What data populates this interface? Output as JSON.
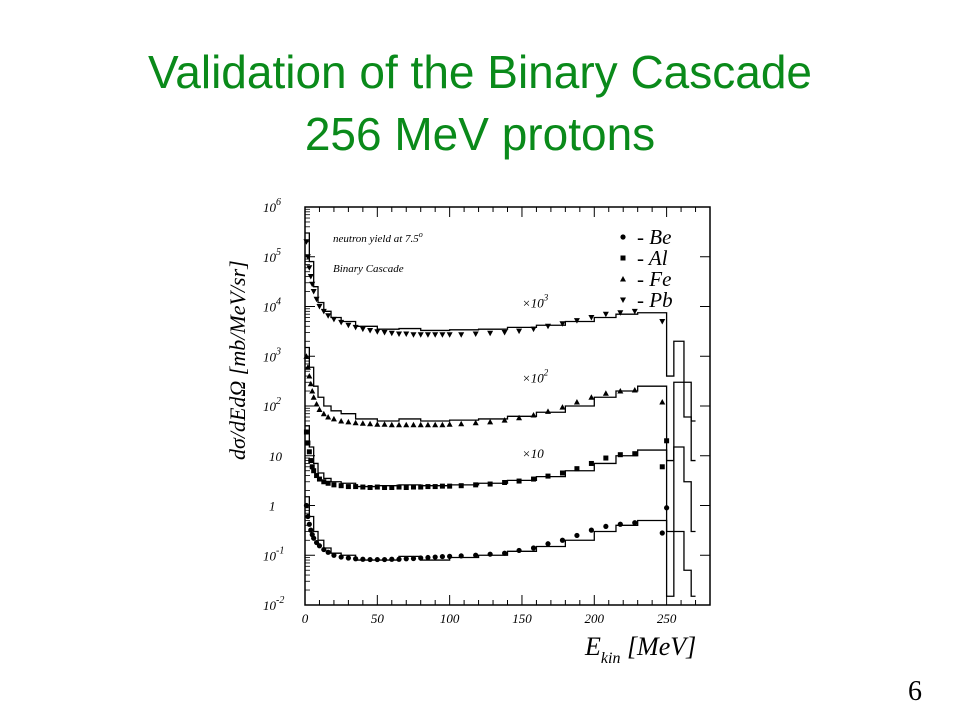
{
  "slide": {
    "title_line_1": "Validation of the Binary Cascade",
    "title_line_2": "256 MeV protons",
    "page_number": "6",
    "title_color": "#0a8a1a"
  },
  "chart_data": {
    "type": "scatter",
    "log_y": true,
    "xlim": [
      0,
      280
    ],
    "ylim": [
      0.01,
      1000000
    ],
    "xlabel": "E",
    "xlabel_sub": "kin",
    "xlabel_unit": "[MeV]",
    "ylabel": "dσ/dEdΩ [mb/MeV/sr]",
    "x_ticks": [
      0,
      50,
      100,
      150,
      200,
      250
    ],
    "y_ticks": [
      {
        "value": 0.01,
        "base": "10",
        "exp": "-2"
      },
      {
        "value": 0.1,
        "base": "10",
        "exp": "-1"
      },
      {
        "value": 1,
        "base": "1",
        "exp": ""
      },
      {
        "value": 10,
        "base": "10",
        "exp": ""
      },
      {
        "value": 100,
        "base": "10",
        "exp": "2"
      },
      {
        "value": 1000,
        "base": "10",
        "exp": "3"
      },
      {
        "value": 10000,
        "base": "10",
        "exp": "4"
      },
      {
        "value": 100000,
        "base": "10",
        "exp": "5"
      },
      {
        "value": 1000000,
        "base": "10",
        "exp": "6"
      }
    ],
    "annotations": {
      "line1_text": "neutron yield at 7.5",
      "line1_sup": "o",
      "line2": "Binary Cascade"
    },
    "legend_position": "top-right",
    "series": [
      {
        "name": "Be",
        "label": "- Be",
        "marker": "circle",
        "scale_label": "",
        "scale_exp": "",
        "points": [
          [
            1,
            1.0
          ],
          [
            2,
            0.6
          ],
          [
            3,
            0.42
          ],
          [
            4,
            0.32
          ],
          [
            5,
            0.26
          ],
          [
            6,
            0.22
          ],
          [
            8,
            0.18
          ],
          [
            10,
            0.155
          ],
          [
            13,
            0.13
          ],
          [
            16,
            0.115
          ],
          [
            20,
            0.1
          ],
          [
            25,
            0.092
          ],
          [
            30,
            0.088
          ],
          [
            35,
            0.085
          ],
          [
            40,
            0.083
          ],
          [
            45,
            0.082
          ],
          [
            50,
            0.082
          ],
          [
            55,
            0.082
          ],
          [
            60,
            0.083
          ],
          [
            65,
            0.083
          ],
          [
            70,
            0.085
          ],
          [
            75,
            0.086
          ],
          [
            80,
            0.088
          ],
          [
            85,
            0.09
          ],
          [
            90,
            0.092
          ],
          [
            95,
            0.094
          ],
          [
            100,
            0.095
          ],
          [
            108,
            0.097
          ],
          [
            118,
            0.1
          ],
          [
            128,
            0.105
          ],
          [
            138,
            0.11
          ],
          [
            148,
            0.125
          ],
          [
            158,
            0.14
          ],
          [
            168,
            0.17
          ],
          [
            178,
            0.2
          ],
          [
            188,
            0.25
          ],
          [
            198,
            0.32
          ],
          [
            208,
            0.38
          ],
          [
            218,
            0.42
          ],
          [
            228,
            0.45
          ],
          [
            247,
            0.28
          ],
          [
            250,
            0.9
          ]
        ],
        "histogram": [
          [
            0,
            1.5
          ],
          [
            3,
            0.6
          ],
          [
            6,
            0.3
          ],
          [
            9,
            0.2
          ],
          [
            13,
            0.14
          ],
          [
            18,
            0.11
          ],
          [
            25,
            0.1
          ],
          [
            35,
            0.08
          ],
          [
            50,
            0.08
          ],
          [
            65,
            0.095
          ],
          [
            80,
            0.08
          ],
          [
            100,
            0.09
          ],
          [
            120,
            0.1
          ],
          [
            140,
            0.12
          ],
          [
            160,
            0.15
          ],
          [
            180,
            0.2
          ],
          [
            200,
            0.3
          ],
          [
            215,
            0.4
          ],
          [
            230,
            0.5
          ],
          [
            245,
            0.5
          ],
          [
            250,
            0.015
          ],
          [
            255,
            0.3
          ],
          [
            262,
            0.05
          ],
          [
            267,
            0.015
          ]
        ]
      },
      {
        "name": "Al",
        "label": "- Al",
        "marker": "square",
        "scale_label": "×10",
        "scale_exp": "",
        "points": [
          [
            1,
            30
          ],
          [
            2,
            18
          ],
          [
            3,
            12
          ],
          [
            4,
            8
          ],
          [
            5,
            6
          ],
          [
            6,
            5
          ],
          [
            8,
            4
          ],
          [
            10,
            3.4
          ],
          [
            13,
            3
          ],
          [
            16,
            2.8
          ],
          [
            20,
            2.6
          ],
          [
            25,
            2.5
          ],
          [
            30,
            2.4
          ],
          [
            35,
            2.4
          ],
          [
            40,
            2.35
          ],
          [
            45,
            2.3
          ],
          [
            50,
            2.35
          ],
          [
            55,
            2.3
          ],
          [
            60,
            2.3
          ],
          [
            65,
            2.35
          ],
          [
            70,
            2.3
          ],
          [
            75,
            2.35
          ],
          [
            80,
            2.35
          ],
          [
            85,
            2.4
          ],
          [
            90,
            2.4
          ],
          [
            95,
            2.45
          ],
          [
            100,
            2.45
          ],
          [
            108,
            2.5
          ],
          [
            118,
            2.6
          ],
          [
            128,
            2.7
          ],
          [
            138,
            2.9
          ],
          [
            148,
            3.1
          ],
          [
            158,
            3.4
          ],
          [
            168,
            3.9
          ],
          [
            178,
            4.5
          ],
          [
            188,
            5.5
          ],
          [
            198,
            7
          ],
          [
            208,
            9
          ],
          [
            218,
            10.5
          ],
          [
            228,
            11
          ],
          [
            247,
            6
          ],
          [
            250,
            20
          ]
        ],
        "histogram": [
          [
            0,
            40
          ],
          [
            3,
            15
          ],
          [
            6,
            7
          ],
          [
            9,
            4.5
          ],
          [
            13,
            3.5
          ],
          [
            18,
            3
          ],
          [
            25,
            2.8
          ],
          [
            35,
            2.4
          ],
          [
            50,
            2.5
          ],
          [
            65,
            2.6
          ],
          [
            80,
            2.5
          ],
          [
            100,
            2.6
          ],
          [
            120,
            2.8
          ],
          [
            140,
            3.2
          ],
          [
            160,
            3.8
          ],
          [
            180,
            5
          ],
          [
            200,
            7
          ],
          [
            215,
            10
          ],
          [
            230,
            13
          ],
          [
            245,
            13
          ],
          [
            250,
            0.3
          ],
          [
            255,
            15
          ],
          [
            262,
            3
          ],
          [
            267,
            0.3
          ]
        ]
      },
      {
        "name": "Fe",
        "label": "- Fe",
        "marker": "triangle-up",
        "scale_label": "×10",
        "scale_exp": "2",
        "points": [
          [
            1,
            1000
          ],
          [
            2,
            600
          ],
          [
            3,
            400
          ],
          [
            4,
            280
          ],
          [
            5,
            200
          ],
          [
            6,
            150
          ],
          [
            8,
            110
          ],
          [
            10,
            85
          ],
          [
            13,
            70
          ],
          [
            16,
            60
          ],
          [
            20,
            55
          ],
          [
            25,
            50
          ],
          [
            30,
            48
          ],
          [
            35,
            46
          ],
          [
            40,
            45
          ],
          [
            45,
            44
          ],
          [
            50,
            43
          ],
          [
            55,
            43
          ],
          [
            60,
            42
          ],
          [
            65,
            42
          ],
          [
            70,
            42
          ],
          [
            75,
            42
          ],
          [
            80,
            42
          ],
          [
            85,
            42
          ],
          [
            90,
            42
          ],
          [
            95,
            42
          ],
          [
            100,
            43
          ],
          [
            108,
            44
          ],
          [
            118,
            46
          ],
          [
            128,
            48
          ],
          [
            138,
            52
          ],
          [
            148,
            58
          ],
          [
            158,
            66
          ],
          [
            168,
            78
          ],
          [
            178,
            95
          ],
          [
            188,
            120
          ],
          [
            198,
            150
          ],
          [
            208,
            180
          ],
          [
            218,
            200
          ],
          [
            228,
            210
          ],
          [
            247,
            120
          ]
        ],
        "histogram": [
          [
            0,
            1500
          ],
          [
            3,
            600
          ],
          [
            6,
            250
          ],
          [
            9,
            150
          ],
          [
            13,
            100
          ],
          [
            18,
            80
          ],
          [
            25,
            70
          ],
          [
            35,
            55
          ],
          [
            50,
            50
          ],
          [
            65,
            55
          ],
          [
            80,
            50
          ],
          [
            100,
            52
          ],
          [
            120,
            55
          ],
          [
            140,
            62
          ],
          [
            160,
            75
          ],
          [
            180,
            100
          ],
          [
            200,
            150
          ],
          [
            215,
            200
          ],
          [
            230,
            250
          ],
          [
            245,
            250
          ],
          [
            250,
            8
          ],
          [
            255,
            300
          ],
          [
            262,
            60
          ],
          [
            267,
            8
          ]
        ]
      },
      {
        "name": "Pb",
        "label": "- Pb",
        "marker": "triangle-down",
        "scale_label": "×10",
        "scale_exp": "3",
        "points": [
          [
            1,
            200000
          ],
          [
            2,
            100000
          ],
          [
            3,
            60000
          ],
          [
            4,
            40000
          ],
          [
            5,
            28000
          ],
          [
            6,
            20000
          ],
          [
            8,
            14000
          ],
          [
            10,
            10000
          ],
          [
            13,
            8000
          ],
          [
            16,
            6500
          ],
          [
            20,
            5500
          ],
          [
            25,
            4800
          ],
          [
            30,
            4200
          ],
          [
            35,
            3800
          ],
          [
            40,
            3500
          ],
          [
            45,
            3300
          ],
          [
            50,
            3100
          ],
          [
            55,
            3000
          ],
          [
            60,
            2900
          ],
          [
            65,
            2800
          ],
          [
            70,
            2800
          ],
          [
            75,
            2700
          ],
          [
            80,
            2700
          ],
          [
            85,
            2700
          ],
          [
            90,
            2700
          ],
          [
            95,
            2700
          ],
          [
            100,
            2700
          ],
          [
            108,
            2700
          ],
          [
            118,
            2800
          ],
          [
            128,
            2900
          ],
          [
            138,
            3000
          ],
          [
            148,
            3200
          ],
          [
            158,
            3500
          ],
          [
            168,
            4000
          ],
          [
            178,
            4500
          ],
          [
            188,
            5200
          ],
          [
            198,
            6000
          ],
          [
            208,
            7000
          ],
          [
            218,
            7500
          ],
          [
            228,
            8000
          ],
          [
            247,
            5000
          ]
        ],
        "histogram": [
          [
            0,
            300000
          ],
          [
            3,
            80000
          ],
          [
            6,
            25000
          ],
          [
            9,
            12000
          ],
          [
            13,
            8000
          ],
          [
            18,
            6000
          ],
          [
            25,
            5000
          ],
          [
            35,
            4000
          ],
          [
            50,
            3500
          ],
          [
            65,
            3600
          ],
          [
            80,
            3300
          ],
          [
            100,
            3400
          ],
          [
            120,
            3500
          ],
          [
            140,
            3800
          ],
          [
            160,
            4200
          ],
          [
            180,
            5000
          ],
          [
            200,
            6000
          ],
          [
            215,
            7000
          ],
          [
            230,
            7500
          ],
          [
            245,
            7500
          ],
          [
            250,
            400
          ],
          [
            255,
            2000
          ],
          [
            262,
            300
          ],
          [
            267,
            50
          ]
        ]
      }
    ]
  }
}
